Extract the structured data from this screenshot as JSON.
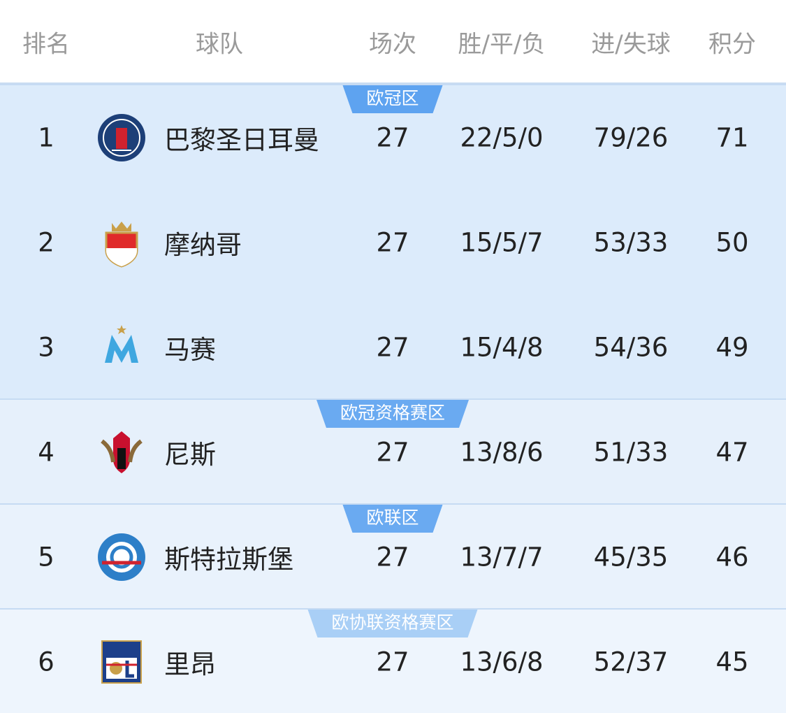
{
  "header": {
    "columns": [
      "排名",
      "球队",
      "场次",
      "胜/平/负",
      "进/失球",
      "积分"
    ]
  },
  "zones": [
    {
      "label": "欧冠区",
      "rows": [
        {
          "rank": 1,
          "team": "巴黎圣日耳曼",
          "played": 27,
          "record": "22/5/0",
          "goals": "79/26",
          "points": 71
        },
        {
          "rank": 2,
          "team": "摩纳哥",
          "played": 27,
          "record": "15/5/7",
          "goals": "53/33",
          "points": 50
        },
        {
          "rank": 3,
          "team": "马赛",
          "played": 27,
          "record": "15/4/8",
          "goals": "54/36",
          "points": 49
        }
      ]
    },
    {
      "label": "欧冠资格赛区",
      "rows": [
        {
          "rank": 4,
          "team": "尼斯",
          "played": 27,
          "record": "13/8/6",
          "goals": "51/33",
          "points": 47
        }
      ]
    },
    {
      "label": "欧联区",
      "rows": [
        {
          "rank": 5,
          "team": "斯特拉斯堡",
          "played": 27,
          "record": "13/7/7",
          "goals": "45/35",
          "points": 46
        }
      ]
    },
    {
      "label": "欧协联资格赛区",
      "rows": [
        {
          "rank": 6,
          "team": "里昂",
          "played": 27,
          "record": "13/6/8",
          "goals": "52/37",
          "points": 45
        }
      ]
    }
  ]
}
